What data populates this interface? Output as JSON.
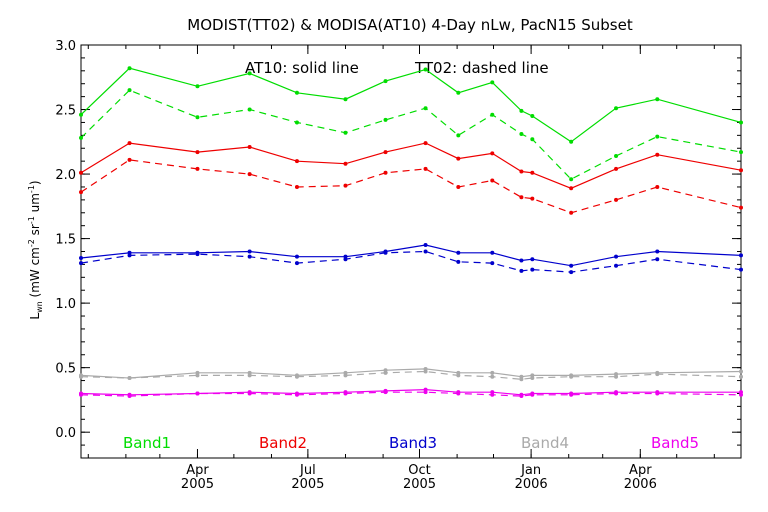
{
  "chart_data": {
    "type": "line",
    "title": "MODIST(TT02) & MODISA(AT10) 4-Day nLw, PacN15 Subset",
    "ylabel": "L_wn (mW cm^-2 sr^-1 um^-1)",
    "annotation_solid": "AT10: solid line",
    "annotation_dashed": "TT02: dashed line",
    "ylim": [
      -0.2,
      3.0
    ],
    "xlim": [
      "2004-12-26",
      "2006-06-23"
    ],
    "y_ticks": [
      "0.0",
      "0.5",
      "1.0",
      "1.5",
      "2.0",
      "2.5",
      "3.0"
    ],
    "x_ticks": [
      {
        "month": "Apr",
        "year": "2005",
        "date": "2005-04-01"
      },
      {
        "month": "Jul",
        "year": "2005",
        "date": "2005-07-01"
      },
      {
        "month": "Oct",
        "year": "2005",
        "date": "2005-10-01"
      },
      {
        "month": "Jan",
        "year": "2006",
        "date": "2006-01-01"
      },
      {
        "month": "Apr",
        "year": "2006",
        "date": "2006-04-01"
      }
    ],
    "x": [
      "2004-12-26",
      "2005-02-04",
      "2005-04-01",
      "2005-05-14",
      "2005-06-22",
      "2005-08-01",
      "2005-09-03",
      "2005-10-06",
      "2005-11-02",
      "2005-11-30",
      "2005-12-24",
      "2006-01-02",
      "2006-02-03",
      "2006-03-12",
      "2006-04-15",
      "2006-06-23"
    ],
    "series": [
      {
        "name": "Band1",
        "color": "#00dd00",
        "solid": [
          2.46,
          2.82,
          2.68,
          2.78,
          2.63,
          2.58,
          2.72,
          2.81,
          2.63,
          2.71,
          2.49,
          2.45,
          2.25,
          2.51,
          2.58,
          2.4
        ],
        "dashed": [
          2.28,
          2.65,
          2.44,
          2.5,
          2.4,
          2.32,
          2.42,
          2.51,
          2.3,
          2.46,
          2.31,
          2.27,
          1.96,
          2.14,
          2.29,
          2.17
        ]
      },
      {
        "name": "Band2",
        "color": "#ee0000",
        "solid": [
          2.01,
          2.24,
          2.17,
          2.21,
          2.1,
          2.08,
          2.17,
          2.24,
          2.12,
          2.16,
          2.02,
          2.01,
          1.89,
          2.04,
          2.15,
          2.03
        ],
        "dashed": [
          1.86,
          2.11,
          2.04,
          2.0,
          1.9,
          1.91,
          2.01,
          2.04,
          1.9,
          1.95,
          1.82,
          1.81,
          1.7,
          1.8,
          1.9,
          1.74
        ]
      },
      {
        "name": "Band3",
        "color": "#0000cc",
        "solid": [
          1.35,
          1.39,
          1.39,
          1.4,
          1.36,
          1.36,
          1.4,
          1.45,
          1.39,
          1.39,
          1.33,
          1.34,
          1.29,
          1.36,
          1.4,
          1.37
        ],
        "dashed": [
          1.31,
          1.37,
          1.38,
          1.36,
          1.31,
          1.34,
          1.39,
          1.4,
          1.32,
          1.31,
          1.25,
          1.26,
          1.24,
          1.29,
          1.34,
          1.26
        ]
      },
      {
        "name": "Band4",
        "color": "#aaaaaa",
        "solid": [
          0.44,
          0.42,
          0.46,
          0.46,
          0.44,
          0.46,
          0.48,
          0.49,
          0.46,
          0.46,
          0.43,
          0.44,
          0.44,
          0.45,
          0.46,
          0.47
        ],
        "dashed": [
          0.43,
          0.42,
          0.44,
          0.44,
          0.43,
          0.44,
          0.46,
          0.47,
          0.44,
          0.43,
          0.41,
          0.42,
          0.43,
          0.43,
          0.45,
          0.43
        ]
      },
      {
        "name": "Band5",
        "color": "#ee00ee",
        "solid": [
          0.3,
          0.29,
          0.3,
          0.31,
          0.3,
          0.31,
          0.32,
          0.33,
          0.31,
          0.31,
          0.29,
          0.3,
          0.3,
          0.31,
          0.31,
          0.31
        ],
        "dashed": [
          0.29,
          0.28,
          0.3,
          0.3,
          0.29,
          0.3,
          0.31,
          0.31,
          0.3,
          0.29,
          0.28,
          0.29,
          0.29,
          0.3,
          0.3,
          0.29
        ]
      }
    ],
    "grid": false,
    "legend_position": "bottom"
  }
}
